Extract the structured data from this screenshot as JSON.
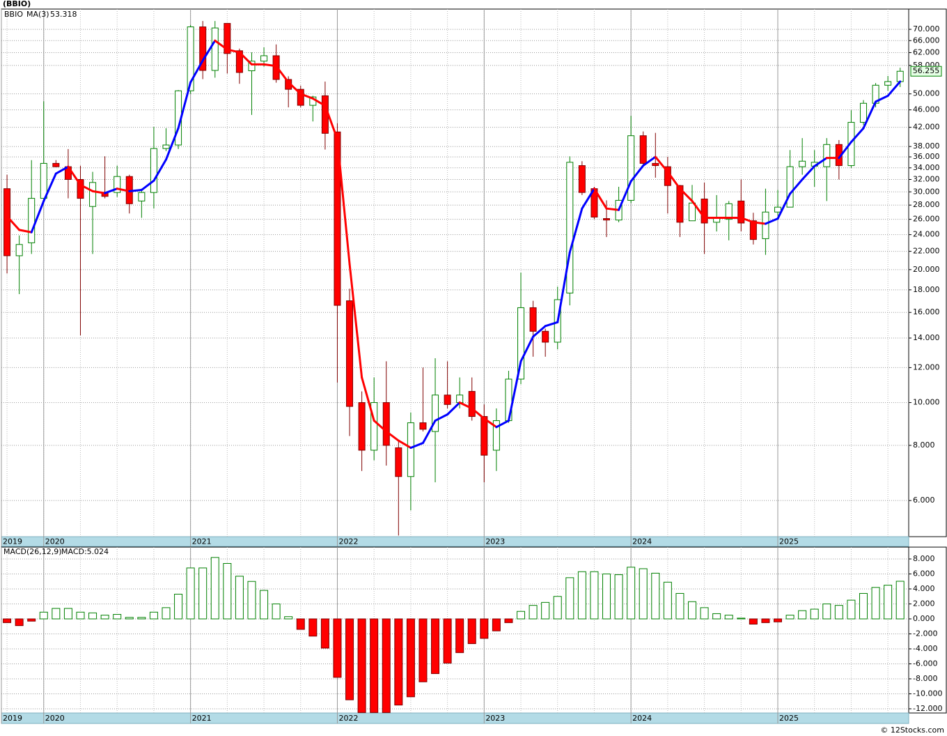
{
  "header": "(BBIO)",
  "footer": "© 12Stocks.com",
  "chart_data": [
    {
      "type": "candlestick",
      "ticker": "BBIO",
      "log_scale": true,
      "grid": true,
      "up_color": "#008000",
      "down_color": "#ff0000",
      "xlim": [
        -0.46,
        73.7
      ],
      "xticks": [
        {
          "value": -0.46,
          "label": "2019"
        },
        {
          "value": 3,
          "label": "2020"
        },
        {
          "value": 15,
          "label": "2021"
        },
        {
          "value": 27,
          "label": "2022"
        },
        {
          "value": 39,
          "label": "2023"
        },
        {
          "value": 51,
          "label": "2024"
        },
        {
          "value": 63,
          "label": "2025"
        }
      ],
      "ylim": [
        4.97,
        77.8
      ],
      "yticks": [
        {
          "value": 6,
          "label": "6.000"
        },
        {
          "value": 8,
          "label": "8.000"
        },
        {
          "value": 10,
          "label": "10.000"
        },
        {
          "value": 12,
          "label": "12.000"
        },
        {
          "value": 14,
          "label": "14.000"
        },
        {
          "value": 16,
          "label": "16.000"
        },
        {
          "value": 18,
          "label": "18.000"
        },
        {
          "value": 20,
          "label": "20.000"
        },
        {
          "value": 22,
          "label": "22.000"
        },
        {
          "value": 24,
          "label": "24.000"
        },
        {
          "value": 26,
          "label": "26.000"
        },
        {
          "value": 28,
          "label": "28.000"
        },
        {
          "value": 30,
          "label": "30.000"
        },
        {
          "value": 32,
          "label": "32.000"
        },
        {
          "value": 34,
          "label": "34.000"
        },
        {
          "value": 36,
          "label": "36.000"
        },
        {
          "value": 38,
          "label": "38.000"
        },
        {
          "value": 42,
          "label": "42.000"
        },
        {
          "value": 46,
          "label": "46.000"
        },
        {
          "value": 50,
          "label": "50.000"
        },
        {
          "value": 58,
          "label": "58.000"
        },
        {
          "value": 62,
          "label": "62.000"
        },
        {
          "value": 66,
          "label": "66.000"
        },
        {
          "value": 70,
          "label": "70.000"
        }
      ],
      "open": [
        30.5,
        21.5,
        23.0,
        29.0,
        34.8,
        34.2,
        32.0,
        27.8,
        29.9,
        29.9,
        32.5,
        28.6,
        29.9,
        37.6,
        38.3,
        50.8,
        70.9,
        56.5,
        72.2,
        62.6,
        56.4,
        59.3,
        61.0,
        53.9,
        51.2,
        47.1,
        49.5,
        41.0,
        17.0,
        10.0,
        7.8,
        10.0,
        7.9,
        6.8,
        9.0,
        8.6,
        10.4,
        10.0,
        10.6,
        9.3,
        7.8,
        9.1,
        11.3,
        16.4,
        14.5,
        13.7,
        17.7,
        34.4,
        30.5,
        26.1,
        25.9,
        28.7,
        40.2,
        34.8,
        34.2,
        31.0,
        25.8,
        28.9,
        25.6,
        26.0,
        28.6,
        25.8,
        23.5,
        27.0,
        27.7,
        34.2,
        34.3,
        34.2,
        38.4,
        34.4,
        43.1,
        47.6,
        52.3,
        53.3
      ],
      "high": [
        32.8,
        23.9,
        35.4,
        48.1,
        35.4,
        37.5,
        34.4,
        33.3,
        36.1,
        34.4,
        32.8,
        30.5,
        42.1,
        41.8,
        51.0,
        71.6,
        73.1,
        73.1,
        72.2,
        63.3,
        62.1,
        63.7,
        64.7,
        54.8,
        52.2,
        49.5,
        53.3,
        42.9,
        18.1,
        10.6,
        11.4,
        12.4,
        8.2,
        9.5,
        12.0,
        12.6,
        12.4,
        11.4,
        11.4,
        9.9,
        9.7,
        11.8,
        19.7,
        17.0,
        14.7,
        18.3,
        36.1,
        35.2,
        30.8,
        28.7,
        30.8,
        44.6,
        41.1,
        40.8,
        36.0,
        31.1,
        31.1,
        31.5,
        29.5,
        28.6,
        32.0,
        26.9,
        30.5,
        30.3,
        37.3,
        39.7,
        37.3,
        39.7,
        39.3,
        45.9,
        48.4,
        52.9,
        54.9,
        57.3
      ],
      "low": [
        19.6,
        17.6,
        21.7,
        28.6,
        34.1,
        29.0,
        14.2,
        21.7,
        29.0,
        29.2,
        26.8,
        26.2,
        27.5,
        37.1,
        37.5,
        50.0,
        54.0,
        54.4,
        55.6,
        52.7,
        44.8,
        57.6,
        53.0,
        46.6,
        46.6,
        43.3,
        37.4,
        11.1,
        8.4,
        7.0,
        7.4,
        7.2,
        5.0,
        5.7,
        8.6,
        6.6,
        9.7,
        9.7,
        9.1,
        6.6,
        7.0,
        9.0,
        11.0,
        12.7,
        12.7,
        13.2,
        16.6,
        29.5,
        26.0,
        23.7,
        25.6,
        28.3,
        34.2,
        32.3,
        26.8,
        23.7,
        25.8,
        21.7,
        24.4,
        23.3,
        24.4,
        22.8,
        21.6,
        26.5,
        27.7,
        32.8,
        30.8,
        28.6,
        32.0,
        34.0,
        42.5,
        46.6,
        50.8,
        51.8
      ],
      "close": [
        21.5,
        22.8,
        29.0,
        34.8,
        34.2,
        32.0,
        29.0,
        31.5,
        29.3,
        32.5,
        28.2,
        29.9,
        37.6,
        38.3,
        50.8,
        70.9,
        56.5,
        70.5,
        61.7,
        55.9,
        59.3,
        61.0,
        53.9,
        51.2,
        47.1,
        49.2,
        40.7,
        16.6,
        9.8,
        7.8,
        10.0,
        8.0,
        6.8,
        9.0,
        8.7,
        10.4,
        9.9,
        10.4,
        9.3,
        7.6,
        9.1,
        11.3,
        16.4,
        14.5,
        13.7,
        17.1,
        35.0,
        29.9,
        26.3,
        25.9,
        28.7,
        40.2,
        34.8,
        34.4,
        31.0,
        25.6,
        28.3,
        25.5,
        26.2,
        28.2,
        25.5,
        23.4,
        27.0,
        27.7,
        34.2,
        35.2,
        35.0,
        38.4,
        34.4,
        43.1,
        47.6,
        52.3,
        53.3,
        56.255
      ],
      "series": [
        {
          "name": "MA(3)",
          "color": "#0000ff",
          "down_color": "#ff0000",
          "values": [
            26.4,
            24.6,
            24.3,
            28.6,
            33.0,
            34.2,
            31.1,
            30.1,
            29.8,
            30.5,
            30.1,
            30.3,
            31.8,
            35.5,
            41.8,
            53.1,
            59.5,
            66.0,
            63.0,
            62.1,
            58.3,
            58.3,
            57.8,
            53.1,
            50.0,
            48.8,
            47.0,
            39.5,
            20.6,
            11.4,
            9.1,
            8.6,
            8.2,
            7.9,
            8.1,
            9.1,
            9.4,
            10.0,
            9.7,
            9.2,
            8.8,
            9.1,
            12.4,
            14.1,
            14.9,
            15.2,
            21.9,
            27.5,
            30.5,
            27.5,
            27.3,
            31.7,
            34.4,
            36.0,
            33.3,
            30.5,
            28.6,
            26.2,
            26.2,
            26.2,
            26.2,
            25.6,
            25.4,
            26.1,
            29.7,
            32.0,
            34.3,
            35.8,
            35.8,
            38.9,
            41.8,
            48.0,
            49.5,
            53.318
          ]
        }
      ]
    },
    {
      "type": "bar",
      "title": "MACD(26,12,9)",
      "legend_label": "MACD:5.024",
      "grid": true,
      "up_color": "#008000",
      "down_color": "#ff0000",
      "xlim": [
        -0.46,
        73.7
      ],
      "xticks": [
        {
          "value": -0.46,
          "label": "2019"
        },
        {
          "value": 3,
          "label": "2020"
        },
        {
          "value": 15,
          "label": "2021"
        },
        {
          "value": 27,
          "label": "2022"
        },
        {
          "value": 39,
          "label": "2023"
        },
        {
          "value": 51,
          "label": "2024"
        },
        {
          "value": 63,
          "label": "2025"
        }
      ],
      "ylim": [
        -12.56,
        9.58
      ],
      "yticks": [
        {
          "value": -12,
          "label": "-12.000"
        },
        {
          "value": -10,
          "label": "-10.000"
        },
        {
          "value": -8,
          "label": "-8.000"
        },
        {
          "value": -6,
          "label": "-6.000"
        },
        {
          "value": -4,
          "label": "-4.000"
        },
        {
          "value": -2,
          "label": "-2.000"
        },
        {
          "value": 0,
          "label": "0.000"
        },
        {
          "value": 2,
          "label": "2.000"
        },
        {
          "value": 4,
          "label": "4.000"
        },
        {
          "value": 6,
          "label": "6.000"
        },
        {
          "value": 8,
          "label": "8.000"
        }
      ],
      "values": [
        -0.5,
        -0.9,
        -0.3,
        0.9,
        1.4,
        1.4,
        0.9,
        0.8,
        0.5,
        0.6,
        0.2,
        0.2,
        0.9,
        1.5,
        3.3,
        6.8,
        6.8,
        8.2,
        7.4,
        5.7,
        5.0,
        3.8,
        2.0,
        0.3,
        -1.4,
        -2.3,
        -3.9,
        -7.8,
        -10.8,
        -12.5,
        -12.5,
        -12.5,
        -11.5,
        -10.4,
        -8.4,
        -7.3,
        -5.9,
        -4.5,
        -3.3,
        -2.6,
        -1.6,
        -0.5,
        1.0,
        1.8,
        2.2,
        3.0,
        5.5,
        6.3,
        6.3,
        6.0,
        5.9,
        6.9,
        6.7,
        6.1,
        4.9,
        3.4,
        2.3,
        1.5,
        0.7,
        0.5,
        0.1,
        -0.7,
        -0.5,
        -0.4,
        0.5,
        1.1,
        1.3,
        2.0,
        1.8,
        2.5,
        3.4,
        4.2,
        4.5,
        5.024
      ]
    }
  ]
}
